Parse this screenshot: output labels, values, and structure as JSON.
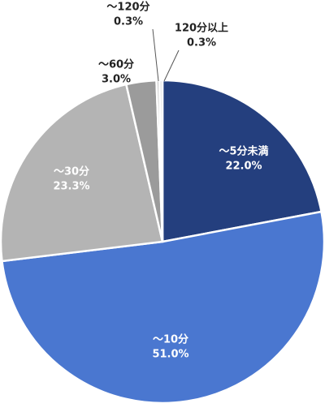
{
  "chart_data": {
    "type": "pie",
    "categories": [
      "～5分未満",
      "～10分",
      "～30分",
      "～60分",
      "～120分",
      "120分以上"
    ],
    "values": [
      22.0,
      51.0,
      23.3,
      3.0,
      0.3,
      0.3
    ],
    "value_labels": [
      "22.0%",
      "51.0%",
      "23.3%",
      "3.0%",
      "0.3%",
      "0.3%"
    ],
    "colors": [
      "#243f7e",
      "#4a77d0",
      "#b4b4b4",
      "#9b9b9b",
      "#c9c9c9",
      "#e2e2e2"
    ]
  }
}
